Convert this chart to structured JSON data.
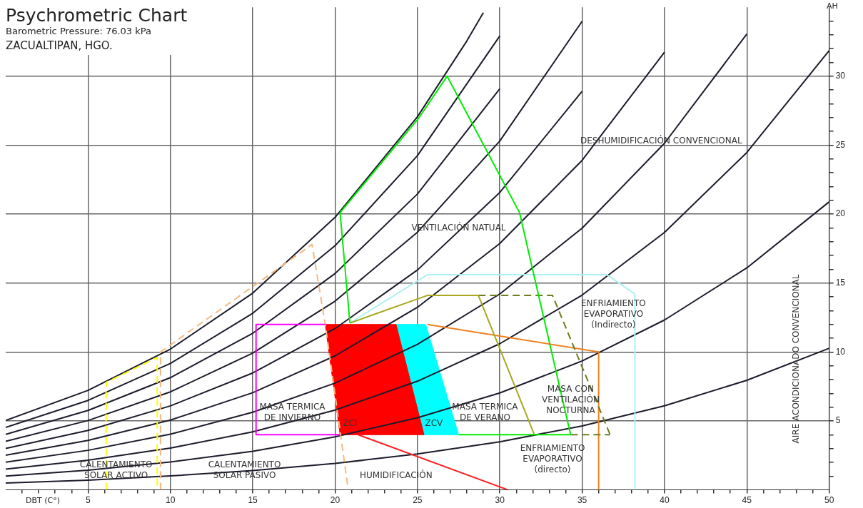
{
  "chart_data": {
    "type": "line",
    "title": "Psychrometric Chart",
    "subtitle": "Barometric Pressure: 76.03 kPa",
    "xlabel": "DBT (C°)",
    "ylabel": "AH",
    "xlim": [
      0,
      50
    ],
    "ylim": [
      0,
      35
    ],
    "xticks": [
      {
        "value": 1,
        "label": null
      },
      {
        "value": 2,
        "label": null
      },
      {
        "value": 3,
        "label": null
      },
      {
        "value": 4,
        "label": null
      },
      5,
      {
        "value": 6,
        "label": null
      },
      {
        "value": 7,
        "label": null
      },
      {
        "value": 8,
        "label": null
      },
      {
        "value": 9,
        "label": null
      },
      10,
      {
        "value": 11,
        "label": null
      },
      {
        "value": 12,
        "label": null
      },
      {
        "value": 13,
        "label": null
      },
      {
        "value": 14,
        "label": null
      },
      15,
      {
        "value": 16,
        "label": null
      },
      {
        "value": 17,
        "label": null
      },
      {
        "value": 18,
        "label": null
      },
      {
        "value": 19,
        "label": null
      },
      20,
      {
        "value": 21,
        "label": null
      },
      {
        "value": 22,
        "label": null
      },
      {
        "value": 23,
        "label": null
      },
      {
        "value": 24,
        "label": null
      },
      25,
      {
        "value": 26,
        "label": null
      },
      {
        "value": 27,
        "label": null
      },
      {
        "value": 28,
        "label": null
      },
      {
        "value": 29,
        "label": null
      },
      30,
      {
        "value": 31,
        "label": null
      },
      {
        "value": 32,
        "label": null
      },
      {
        "value": 33,
        "label": null
      },
      {
        "value": 34,
        "label": null
      },
      35,
      {
        "value": 36,
        "label": null
      },
      {
        "value": 37,
        "label": null
      },
      {
        "value": 38,
        "label": null
      },
      {
        "value": 39,
        "label": null
      },
      40,
      {
        "value": 41,
        "label": null
      },
      {
        "value": 42,
        "label": null
      },
      {
        "value": 43,
        "label": null
      },
      {
        "value": 44,
        "label": null
      },
      45,
      {
        "value": 46,
        "label": null
      },
      {
        "value": 47,
        "label": null
      },
      {
        "value": 48,
        "label": null
      },
      {
        "value": 49,
        "label": null
      },
      50
    ],
    "yticks": [
      {
        "value": 1,
        "label": null
      },
      {
        "value": 2,
        "label": null
      },
      {
        "value": 3,
        "label": null
      },
      {
        "value": 4,
        "label": null
      },
      5,
      {
        "value": 6,
        "label": null
      },
      {
        "value": 7,
        "label": null
      },
      {
        "value": 8,
        "label": null
      },
      {
        "value": 9,
        "label": null
      },
      10,
      {
        "value": 11,
        "label": null
      },
      {
        "value": 12,
        "label": null
      },
      {
        "value": 13,
        "label": null
      },
      {
        "value": 14,
        "label": null
      },
      15,
      {
        "value": 16,
        "label": null
      },
      {
        "value": 17,
        "label": null
      },
      {
        "value": 18,
        "label": null
      },
      {
        "value": 19,
        "label": null
      },
      20,
      {
        "value": 21,
        "label": null
      },
      {
        "value": 22,
        "label": null
      },
      {
        "value": 23,
        "label": null
      },
      {
        "value": 24,
        "label": null
      },
      25,
      {
        "value": 26,
        "label": null
      },
      {
        "value": 27,
        "label": null
      },
      {
        "value": 28,
        "label": null
      },
      {
        "value": 29,
        "label": null
      },
      30,
      {
        "value": 31,
        "label": null
      },
      {
        "value": 32,
        "label": null
      },
      {
        "value": 33,
        "label": null
      },
      {
        "value": 34,
        "label": null
      }
    ],
    "grid": true,
    "legend": false,
    "marker": "none",
    "series": [
      {
        "color": "#1c1c2c",
        "x": [
          0,
          5,
          10,
          15,
          20,
          25,
          30,
          35,
          40,
          45,
          50
        ],
        "values": [
          0.5,
          0.71,
          1.01,
          1.4,
          1.92,
          2.6,
          3.49,
          4.64,
          6.1,
          7.95,
          10.27
        ]
      },
      {
        "color": "#1c1c2c",
        "x": [
          0,
          5,
          10,
          15,
          20,
          25,
          30,
          35,
          40,
          45,
          50
        ],
        "values": [
          1.0,
          1.43,
          2.02,
          2.8,
          3.85,
          5.23,
          7.03,
          9.35,
          12.32,
          16.1,
          20.89
        ]
      },
      {
        "color": "#1c1c2c",
        "x": [
          0,
          5,
          10,
          15,
          20,
          25,
          30,
          35,
          40,
          45,
          50
        ],
        "values": [
          1.5,
          2.15,
          3.03,
          4.21,
          5.79,
          7.88,
          10.6,
          14.13,
          18.67,
          24.47,
          31.86
        ]
      },
      {
        "color": "#1c1c2c",
        "x": [
          0,
          5,
          10,
          15,
          20,
          25,
          30,
          35,
          40,
          45
        ],
        "values": [
          2.01,
          2.87,
          4.04,
          5.63,
          7.75,
          10.55,
          14.21,
          18.98,
          25.14,
          33.06
        ]
      },
      {
        "color": "#1c1c2c",
        "x": [
          0,
          5,
          10,
          15,
          20,
          25,
          30,
          35,
          40
        ],
        "values": [
          2.51,
          3.59,
          5.06,
          7.05,
          9.72,
          13.24,
          17.87,
          23.9,
          31.74
        ]
      },
      {
        "color": "#1c1c2c",
        "x": [
          0,
          5,
          10,
          15,
          20,
          25,
          30,
          35
        ],
        "values": [
          3.01,
          4.31,
          6.09,
          8.48,
          11.7,
          15.95,
          21.57,
          28.91
        ]
      },
      {
        "color": "#1c1c2c",
        "x": [
          0,
          5,
          10,
          15,
          20,
          25,
          30,
          35
        ],
        "values": [
          3.52,
          5.03,
          7.11,
          9.92,
          13.69,
          18.69,
          25.3,
          33.99
        ]
      },
      {
        "color": "#1c1c2c",
        "x": [
          0,
          5,
          10,
          15,
          20,
          25,
          30
        ],
        "values": [
          4.02,
          5.76,
          8.14,
          11.36,
          15.69,
          21.46,
          29.09
        ]
      },
      {
        "color": "#1c1c2c",
        "x": [
          0,
          5,
          10,
          15,
          20,
          25,
          30
        ],
        "values": [
          4.53,
          6.49,
          9.17,
          12.81,
          17.71,
          24.24,
          32.92
        ]
      },
      {
        "color": "#1c1c2c",
        "x": [
          0,
          5,
          10,
          15,
          20,
          25,
          28,
          29
        ],
        "values": [
          5.04,
          7.22,
          10.21,
          14.27,
          19.77,
          27.06,
          32.56,
          34.61
        ]
      },
      {
        "type": "area",
        "color": "#ff0000",
        "x": [
          19.4,
          23.7,
          25.4,
          20.3,
          19.4
        ],
        "values": [
          12,
          12,
          4,
          4,
          12
        ]
      },
      {
        "type": "area",
        "color": "#00ffff",
        "x": [
          23.7,
          25.5,
          27.5,
          25.4,
          23.7
        ],
        "values": [
          12,
          12,
          4,
          4,
          12
        ]
      },
      {
        "color": "#ff00ff",
        "x": [
          19.4,
          15.2,
          15.2,
          20.3
        ],
        "values": [
          12,
          12,
          4,
          4
        ]
      },
      {
        "color": "#00ee00",
        "x": [
          20.3,
          20.9
        ],
        "values": [
          20.1,
          12.1
        ]
      },
      {
        "color": "#00ee00",
        "x": [
          20.3,
          25.1,
          26.8,
          31.2,
          34.3
        ],
        "values": [
          20.1,
          27,
          30,
          20.1,
          4
        ]
      },
      {
        "color": "#00ee00",
        "x": [
          27.5,
          34.3
        ],
        "values": [
          4,
          4
        ]
      },
      {
        "color": "#a8a820",
        "x": [
          20.9,
          25.6,
          28.7,
          32.1
        ],
        "values": [
          12.1,
          14.1,
          14.1,
          4
        ]
      },
      {
        "color": "#6b7d1e",
        "line_style": "dashed",
        "x": [
          28.7,
          33.2,
          36.7
        ],
        "values": [
          14.1,
          14.1,
          4
        ]
      },
      {
        "color": "#6b7d1e",
        "line_style": "dashed",
        "x": [
          34.3,
          36.7
        ],
        "values": [
          4,
          4
        ]
      },
      {
        "color": "#b0f0f0",
        "x": [
          20.9,
          25.6,
          36.5,
          38.2,
          38.2
        ],
        "values": [
          12.1,
          15.6,
          15.6,
          14.2,
          0
        ]
      },
      {
        "color": "#f08020",
        "x": [
          25.6,
          36,
          36
        ],
        "values": [
          12,
          10,
          0
        ]
      },
      {
        "color": "#ff2020",
        "x": [
          21.4,
          30.5
        ],
        "values": [
          4,
          0
        ]
      },
      {
        "color": "#f5b880",
        "line_style": "dashed",
        "x": [
          9.4,
          9.4,
          18.6,
          19.4,
          20.8
        ],
        "values": [
          0,
          10,
          17.8,
          12,
          0
        ]
      },
      {
        "color": "#ffff00",
        "line_style": "dashed",
        "x": [
          6.1,
          6.1,
          9.2,
          9.2
        ],
        "values": [
          0,
          7.8,
          9.6,
          0
        ]
      }
    ],
    "annotations": [
      "ZACUALTIPAN, HGO.",
      {
        "text": "DESHUMIDIFICACIÓN CONVENCIONAL",
        "x": 39.8,
        "y": 25.3
      },
      {
        "text": "VENTILACIÓN NATUAL",
        "x": 27.5,
        "y": 19
      },
      "ENFRIAMIENTO\nEVAPORATIVO\n(Indirecto)",
      {
        "text": "AIRE ACONDICIONADO CONVENCIONAL",
        "x": 48,
        "y": 9.5
      },
      "MASA CON\nVENTILACIÓN\nNOCTURNA",
      "MASA TERMICA\nDE VERANO",
      "MASA TERMICA\nDE INVIERNO",
      "ZCI",
      "ZCV",
      "ENFRIAMIENTO\nEVAPORATIVO\n(directo)",
      "HUMIDIFICACIÓN",
      {
        "text": "CALENTAMIENTO\nSOLAR PASIVO",
        "x": 14.5,
        "y": 1.4
      },
      {
        "text": "CALENTAMIENTO\nSOLAR ACTIVO",
        "x": 6.7,
        "y": 1.4
      }
    ]
  }
}
